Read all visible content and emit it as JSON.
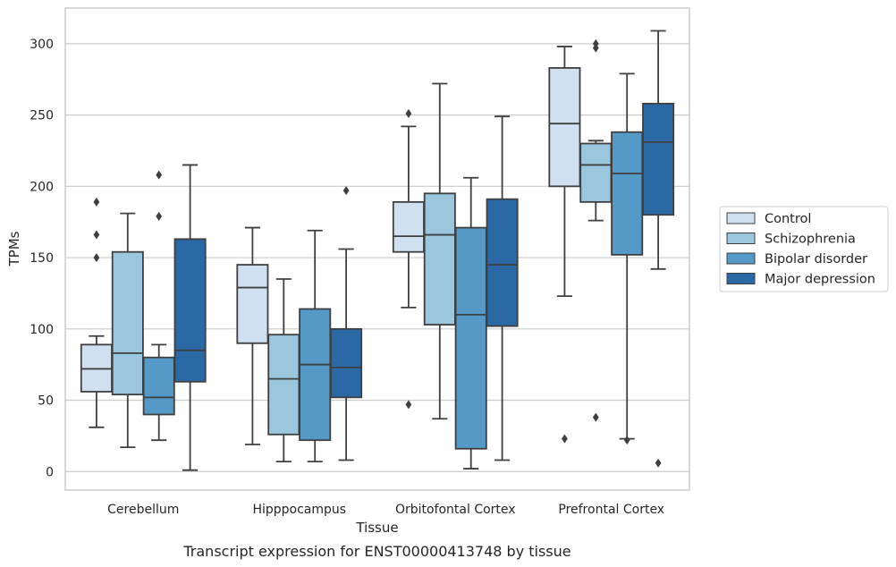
{
  "chart_data": {
    "type": "box",
    "caption": "Transcript expression for ENST00000413748 by tissue",
    "xlabel": "Tissue",
    "ylabel": "TPMs",
    "ylim": [
      -13,
      325
    ],
    "yticks": [
      0,
      50,
      100,
      150,
      200,
      250,
      300
    ],
    "grid": "horizontal",
    "legend_position": "right",
    "categories": [
      "Cerebellum",
      "Hipppocampus",
      "Orbitofontal Cortex",
      "Prefrontal Cortex"
    ],
    "series": [
      {
        "name": "Control",
        "color": "#d0e0f1",
        "boxes": [
          {
            "whislo": 31,
            "q1": 56,
            "med": 72,
            "q3": 89,
            "whishi": 95,
            "fliers": [
              150,
              166,
              189
            ]
          },
          {
            "whislo": 19,
            "q1": 90,
            "med": 129,
            "q3": 145,
            "whishi": 171,
            "fliers": []
          },
          {
            "whislo": 115,
            "q1": 154,
            "med": 165,
            "q3": 189,
            "whishi": 242,
            "fliers": [
              47,
              251
            ]
          },
          {
            "whislo": 123,
            "q1": 200,
            "med": 244,
            "q3": 283,
            "whishi": 298,
            "fliers": [
              23
            ]
          }
        ]
      },
      {
        "name": "Schizophrenia",
        "color": "#9ac6de",
        "boxes": [
          {
            "whislo": 17,
            "q1": 54,
            "med": 83,
            "q3": 154,
            "whishi": 181,
            "fliers": []
          },
          {
            "whislo": 7,
            "q1": 26,
            "med": 65,
            "q3": 96,
            "whishi": 135,
            "fliers": []
          },
          {
            "whislo": 37,
            "q1": 103,
            "med": 166,
            "q3": 195,
            "whishi": 272,
            "fliers": []
          },
          {
            "whislo": 176,
            "q1": 189,
            "med": 215,
            "q3": 230,
            "whishi": 232,
            "fliers": [
              38,
              297,
              300
            ]
          }
        ]
      },
      {
        "name": "Bipolar disorder",
        "color": "#5499c7",
        "boxes": [
          {
            "whislo": 22,
            "q1": 40,
            "med": 52,
            "q3": 80,
            "whishi": 89,
            "fliers": [
              179,
              208
            ]
          },
          {
            "whislo": 7,
            "q1": 22,
            "med": 75,
            "q3": 114,
            "whishi": 169,
            "fliers": []
          },
          {
            "whislo": 2,
            "q1": 16,
            "med": 110,
            "q3": 171,
            "whishi": 206,
            "fliers": []
          },
          {
            "whislo": 23,
            "q1": 152,
            "med": 209,
            "q3": 238,
            "whishi": 279,
            "fliers": [
              22
            ]
          }
        ]
      },
      {
        "name": "Major depression",
        "color": "#2b69a6",
        "boxes": [
          {
            "whislo": 1,
            "q1": 63,
            "med": 85,
            "q3": 163,
            "whishi": 215,
            "fliers": []
          },
          {
            "whislo": 8,
            "q1": 52,
            "med": 73,
            "q3": 100,
            "whishi": 156,
            "fliers": [
              197
            ]
          },
          {
            "whislo": 8,
            "q1": 102,
            "med": 145,
            "q3": 191,
            "whishi": 249,
            "fliers": []
          },
          {
            "whislo": 142,
            "q1": 180,
            "med": 231,
            "q3": 258,
            "whishi": 309,
            "fliers": [
              6
            ]
          }
        ]
      }
    ]
  }
}
